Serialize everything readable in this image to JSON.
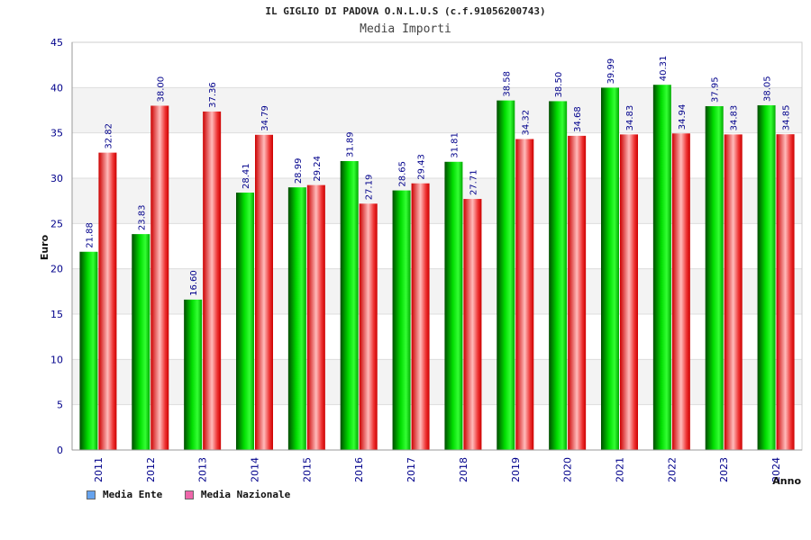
{
  "chart_data": {
    "type": "bar",
    "title": "IL GIGLIO DI PADOVA O.N.L.U.S (c.f.91056200743)",
    "subtitle": "Media Importi",
    "xlabel": "Anno",
    "ylabel": "Euro",
    "ylim": [
      0,
      45
    ],
    "yticks": [
      "0",
      "5",
      "10",
      "15",
      "20",
      "25",
      "30",
      "35",
      "40",
      "45"
    ],
    "grid": true,
    "legend_position": "bottom-left",
    "categories": [
      "2011",
      "2012",
      "2013",
      "2014",
      "2015",
      "2016",
      "2017",
      "2018",
      "2019",
      "2020",
      "2021",
      "2022",
      "2023",
      "2024"
    ],
    "series": [
      {
        "name": "Media Ente",
        "color": "#00cc00",
        "legend_color": "#66a3ee",
        "values": [
          21.88,
          23.83,
          16.6,
          28.41,
          28.99,
          31.89,
          28.65,
          31.81,
          38.58,
          38.5,
          39.99,
          40.31,
          37.95,
          38.05
        ],
        "labels": [
          "21.88",
          "23.83",
          "16.60",
          "28.41",
          "28.99",
          "31.89",
          "28.65",
          "31.81",
          "38.58",
          "38.50",
          "39.99",
          "40.31",
          "37.95",
          "38.05"
        ]
      },
      {
        "name": "Media Nazionale",
        "color": "#ee1111",
        "legend_color": "#ee66aa",
        "values": [
          32.82,
          38.0,
          37.36,
          34.79,
          29.24,
          27.19,
          29.43,
          27.71,
          34.32,
          34.68,
          34.83,
          34.94,
          34.83,
          34.85
        ],
        "labels": [
          "32.82",
          "38.00",
          "37.36",
          "34.79",
          "29.24",
          "27.19",
          "29.43",
          "27.71",
          "34.32",
          "34.68",
          "34.83",
          "34.94",
          "34.83",
          "34.85"
        ]
      }
    ]
  }
}
